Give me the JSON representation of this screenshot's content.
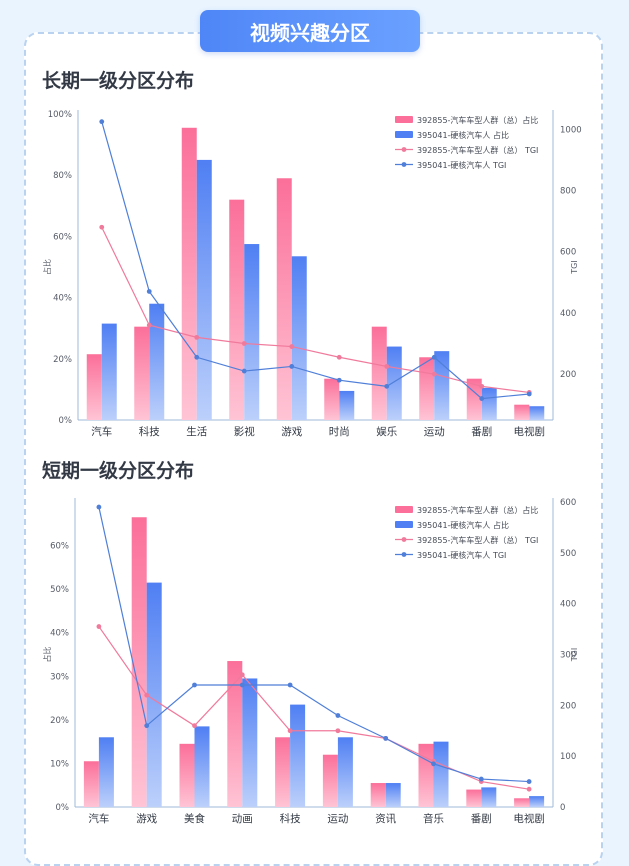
{
  "header": {
    "title": "视频兴趣分区"
  },
  "colors": {
    "bar_a_top": "#fb6f9a",
    "bar_a_bottom": "#ffc4d5",
    "bar_b_top": "#4f7ff3",
    "bar_b_bottom": "#bcd0fb",
    "line_a": "#f07a9c",
    "line_b": "#4f7fd8",
    "axis": "#9fb8d8",
    "tick_text": "#555a66"
  },
  "chart_data": [
    {
      "type": "bar",
      "title": "长期一级分区分布",
      "ylabel": "占比",
      "y2label": "TGI",
      "categories": [
        "汽车",
        "科技",
        "生活",
        "影视",
        "游戏",
        "时尚",
        "娱乐",
        "运动",
        "番剧",
        "电视剧"
      ],
      "ylim": [
        0,
        100
      ],
      "y_ticks": [
        "0%",
        "20%",
        "40%",
        "60%",
        "80%",
        "100%"
      ],
      "y_tick_values": [
        0,
        20,
        40,
        60,
        80,
        100
      ],
      "y2lim": [
        50,
        1050
      ],
      "y2_ticks": [
        "200",
        "400",
        "600",
        "800",
        "1000"
      ],
      "y2_tick_values": [
        200,
        400,
        600,
        800,
        1000
      ],
      "legend_position": "top-right",
      "series": [
        {
          "name": "392855-汽车车型人群（总）占比",
          "kind": "bar",
          "values": [
            21.5,
            30.5,
            95.5,
            72,
            79,
            13.5,
            30.5,
            20.5,
            13.5,
            5
          ]
        },
        {
          "name": "395041-硬核汽车人 占比",
          "kind": "bar",
          "values": [
            31.5,
            38,
            85,
            57.5,
            53.5,
            9.5,
            24,
            22.5,
            10.5,
            4.5
          ]
        },
        {
          "name": "392855-汽车车型人群（总） TGI",
          "kind": "line",
          "values": [
            680,
            360,
            320,
            300,
            290,
            255,
            225,
            200,
            160,
            140
          ]
        },
        {
          "name": "395041-硬核汽车人 TGI",
          "kind": "line",
          "values": [
            1025,
            470,
            255,
            210,
            225,
            180,
            160,
            255,
            120,
            135
          ]
        }
      ]
    },
    {
      "type": "bar",
      "title": "短期一级分区分布",
      "ylabel": "占比",
      "y2label": "TGI",
      "categories": [
        "汽车",
        "游戏",
        "美食",
        "动画",
        "科技",
        "运动",
        "资讯",
        "音乐",
        "番剧",
        "电视剧"
      ],
      "ylim": [
        0,
        70
      ],
      "y_ticks": [
        "0%",
        "10%",
        "20%",
        "30%",
        "40%",
        "50%",
        "60%"
      ],
      "y_tick_values": [
        0,
        10,
        20,
        30,
        40,
        50,
        60
      ],
      "y2lim": [
        0,
        600
      ],
      "y2_ticks": [
        "0",
        "100",
        "200",
        "300",
        "400",
        "500",
        "600"
      ],
      "y2_tick_values": [
        0,
        100,
        200,
        300,
        400,
        500,
        600
      ],
      "legend_position": "top-right",
      "series": [
        {
          "name": "392855-汽车车型人群（总）占比",
          "kind": "bar",
          "values": [
            10.5,
            66.5,
            14.5,
            33.5,
            16,
            12,
            5.5,
            14.5,
            4,
            2
          ]
        },
        {
          "name": "395041-硬核汽车人 占比",
          "kind": "bar",
          "values": [
            16,
            51.5,
            18.5,
            29.5,
            23.5,
            16,
            5.5,
            15,
            4.5,
            2.5
          ]
        },
        {
          "name": "392855-汽车车型人群（总） TGI",
          "kind": "line",
          "values": [
            355,
            220,
            160,
            260,
            150,
            150,
            135,
            90,
            50,
            35
          ]
        },
        {
          "name": "395041-硬核汽车人 TGI",
          "kind": "line",
          "values": [
            590,
            160,
            240,
            240,
            240,
            180,
            135,
            85,
            55,
            50
          ]
        }
      ]
    }
  ]
}
